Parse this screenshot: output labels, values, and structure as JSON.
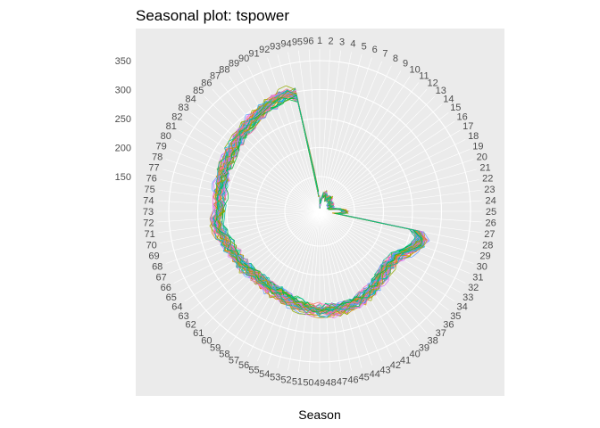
{
  "chart_data": {
    "type": "line",
    "coordinate_system": "polar",
    "title": "Seasonal plot: tspower",
    "xlabel": "Season",
    "ylabel": "",
    "seasons": [
      1,
      2,
      3,
      4,
      5,
      6,
      7,
      8,
      9,
      10,
      11,
      12,
      13,
      14,
      15,
      16,
      17,
      18,
      19,
      20,
      21,
      22,
      23,
      24,
      25,
      26,
      27,
      28,
      29,
      30,
      31,
      32,
      33,
      34,
      35,
      36,
      37,
      38,
      39,
      40,
      41,
      42,
      43,
      44,
      45,
      46,
      47,
      48,
      49,
      50,
      51,
      52,
      53,
      54,
      55,
      56,
      57,
      58,
      59,
      60,
      61,
      62,
      63,
      64,
      65,
      66,
      67,
      68,
      69,
      70,
      71,
      72,
      73,
      74,
      75,
      76,
      77,
      78,
      79,
      80,
      81,
      82,
      83,
      84,
      85,
      86,
      87,
      88,
      89,
      90,
      91,
      92,
      93,
      94,
      95,
      96
    ],
    "y_ticks": [
      150,
      200,
      250,
      300,
      350
    ],
    "ylim": [
      90,
      370
    ],
    "grid": true,
    "legend": "none",
    "series_count": 50,
    "series_colors": [
      "#F8766D",
      "#D39200",
      "#93AA00",
      "#00BA38",
      "#00C19F",
      "#00B9E3",
      "#619CFF",
      "#DB72FB",
      "#FF61C3"
    ],
    "typical_profile": [
      {
        "season": 1,
        "value": 112
      },
      {
        "season": 2,
        "value": 100
      },
      {
        "season": 4,
        "value": 118
      },
      {
        "season": 6,
        "value": 122
      },
      {
        "season": 8,
        "value": 115
      },
      {
        "season": 10,
        "value": 117
      },
      {
        "season": 12,
        "value": 118
      },
      {
        "season": 14,
        "value": 112
      },
      {
        "season": 16,
        "value": 112
      },
      {
        "season": 18,
        "value": 112
      },
      {
        "season": 20,
        "value": 110
      },
      {
        "season": 22,
        "value": 112
      },
      {
        "season": 24,
        "value": 130
      },
      {
        "season": 25,
        "value": 135
      },
      {
        "season": 26,
        "value": 132
      },
      {
        "season": 27,
        "value": 118
      },
      {
        "season": 28,
        "value": 260
      },
      {
        "season": 29,
        "value": 272
      },
      {
        "season": 30,
        "value": 270
      },
      {
        "season": 31,
        "value": 262
      },
      {
        "season": 33,
        "value": 245
      },
      {
        "season": 36,
        "value": 242
      },
      {
        "season": 39,
        "value": 250
      },
      {
        "season": 42,
        "value": 258
      },
      {
        "season": 45,
        "value": 262
      },
      {
        "season": 48,
        "value": 262
      },
      {
        "season": 51,
        "value": 258
      },
      {
        "season": 54,
        "value": 252
      },
      {
        "season": 57,
        "value": 248
      },
      {
        "season": 60,
        "value": 246
      },
      {
        "season": 63,
        "value": 250
      },
      {
        "season": 66,
        "value": 255
      },
      {
        "season": 69,
        "value": 262
      },
      {
        "season": 71,
        "value": 270
      },
      {
        "season": 72,
        "value": 268
      },
      {
        "season": 73,
        "value": 262
      },
      {
        "season": 75,
        "value": 264
      },
      {
        "season": 78,
        "value": 268
      },
      {
        "season": 81,
        "value": 272
      },
      {
        "season": 84,
        "value": 278
      },
      {
        "season": 87,
        "value": 285
      },
      {
        "season": 90,
        "value": 292
      },
      {
        "season": 92,
        "value": 298
      },
      {
        "season": 93,
        "value": 300
      },
      {
        "season": 94,
        "value": 295
      },
      {
        "season": 95,
        "value": 150
      },
      {
        "season": 96,
        "value": 120
      }
    ]
  }
}
